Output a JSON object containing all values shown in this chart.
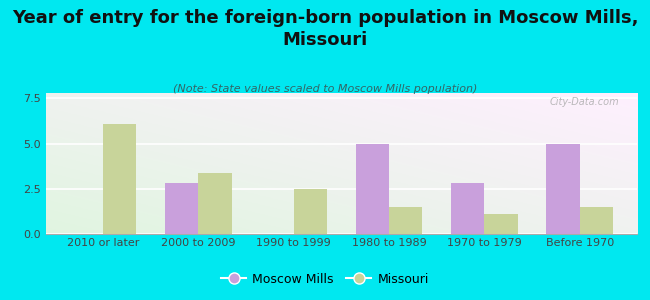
{
  "title": "Year of entry for the foreign-born population in Moscow Mills,\nMissouri",
  "subtitle": "(Note: State values scaled to Moscow Mills population)",
  "categories": [
    "2010 or later",
    "2000 to 2009",
    "1990 to 1999",
    "1980 to 1989",
    "1970 to 1979",
    "Before 1970"
  ],
  "moscow_mills": [
    0,
    2.8,
    0,
    5.0,
    2.8,
    5.0
  ],
  "missouri": [
    6.1,
    3.4,
    2.5,
    1.5,
    1.1,
    1.5
  ],
  "moscow_mills_color": "#c9a0dc",
  "missouri_color": "#c8d49a",
  "background_color": "#00e8f0",
  "ylim": [
    0,
    7.8
  ],
  "yticks": [
    0,
    2.5,
    5,
    7.5
  ],
  "bar_width": 0.35,
  "legend_moscow": "Moscow Mills",
  "legend_missouri": "Missouri",
  "title_fontsize": 13,
  "subtitle_fontsize": 8,
  "tick_fontsize": 8,
  "legend_fontsize": 9
}
